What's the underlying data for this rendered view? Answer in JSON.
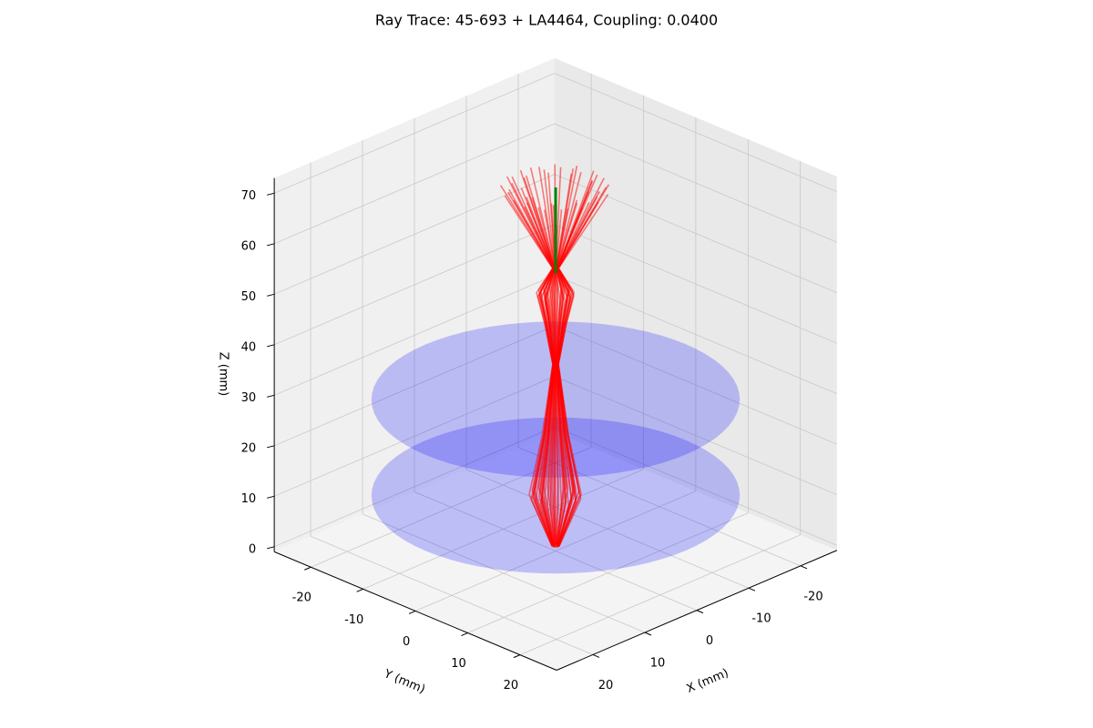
{
  "chart_data": {
    "type": "line3d",
    "title": "Ray Trace: 45-693 + LA4464, Coupling: 0.0400",
    "x_label": "X (mm)",
    "y_label": "Y (mm)",
    "z_label": "Z (mm)",
    "xlim": [
      -27,
      27
    ],
    "ylim": [
      -27,
      27
    ],
    "zlim": [
      -1,
      73
    ],
    "xticks": [
      -20,
      -10,
      0,
      10,
      20
    ],
    "yticks": [
      -20,
      -10,
      0,
      10,
      20
    ],
    "zticks": [
      0,
      10,
      20,
      30,
      40,
      50,
      60,
      70
    ],
    "grid": true,
    "lenses": [
      {
        "z": 10,
        "radius": 25,
        "color": "#0000ff"
      },
      {
        "z": 29,
        "radius": 25,
        "color": "#0000ff"
      }
    ],
    "beam": {
      "color": "#ff0000",
      "z": [
        0,
        10,
        22,
        36,
        44,
        50,
        55,
        71
      ],
      "radius": [
        0.5,
        3.6,
        1.8,
        0.4,
        1.5,
        2.6,
        0.4,
        7.5
      ]
    },
    "chief_ray": {
      "color": "#008000",
      "z": [
        54,
        71
      ]
    }
  }
}
